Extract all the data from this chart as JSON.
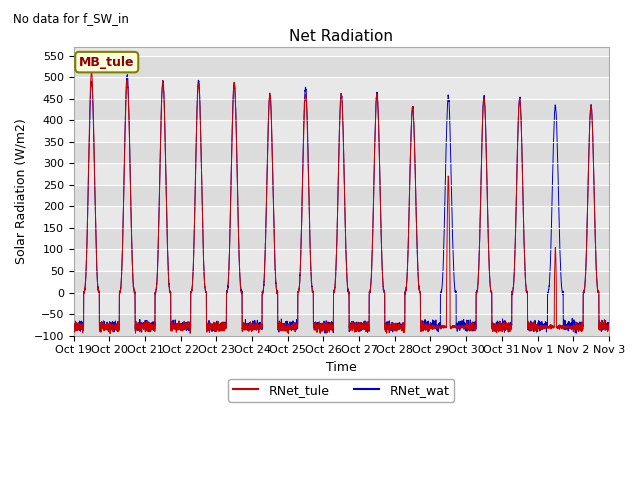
{
  "title": "Net Radiation",
  "suptitle": "No data for f_SW_in",
  "ylabel": "Solar Radiation (W/m2)",
  "xlabel": "Time",
  "ylim": [
    -100,
    570
  ],
  "yticks": [
    -100,
    -50,
    0,
    50,
    100,
    150,
    200,
    250,
    300,
    350,
    400,
    450,
    500,
    550
  ],
  "xtick_labels": [
    "Oct 19",
    "Oct 20",
    "Oct 21",
    "Oct 22",
    "Oct 23",
    "Oct 24",
    "Oct 25",
    "Oct 26",
    "Oct 27",
    "Oct 28",
    "Oct 29",
    "Oct 30",
    "Oct 31",
    "Nov 1",
    "Nov 2",
    "Nov 3"
  ],
  "color_tule": "#cc0000",
  "color_wat": "#0000cc",
  "legend_label_tule": "RNet_tule",
  "legend_label_wat": "RNet_wat",
  "annotation_label": "MB_tule",
  "night_value": -80,
  "n_days": 15,
  "plot_bg": "#e8e8e8",
  "band_colors": [
    "#dcdcdc",
    "#e8e8e8"
  ]
}
